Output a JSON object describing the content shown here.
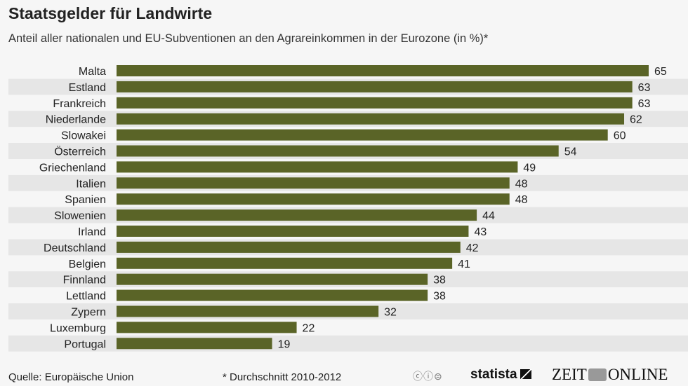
{
  "title": "Staatsgelder für Landwirte",
  "subtitle": "Anteil aller nationalen und EU-Subventionen an den Agrareinkommen in der Eurozone (in %)*",
  "footer": {
    "source": "Quelle: Europäische Union",
    "note": "* Durchschnitt 2010-2012",
    "cc_icons": "cc-by-nd-icons",
    "statista": "statista",
    "zeit_left": "ZEIT",
    "zeit_right": "ONLINE"
  },
  "chart_data": {
    "type": "bar",
    "orientation": "horizontal",
    "title": "Staatsgelder für Landwirte",
    "subtitle": "Anteil aller nationalen und EU-Subventionen an den Agrareinkommen in der Eurozone (in %)*",
    "categories": [
      "Malta",
      "Estland",
      "Frankreich",
      "Niederlande",
      "Slowakei",
      "Österreich",
      "Griechenland",
      "Italien",
      "Spanien",
      "Slowenien",
      "Irland",
      "Deutschland",
      "Belgien",
      "Finnland",
      "Lettland",
      "Zypern",
      "Luxemburg",
      "Portugal"
    ],
    "values": [
      65,
      63,
      63,
      62,
      60,
      54,
      49,
      48,
      48,
      44,
      43,
      42,
      41,
      38,
      38,
      32,
      22,
      19
    ],
    "xlim": [
      0,
      65
    ],
    "grid": false,
    "bar_color": "#5a6427",
    "stripe_color": "#e6e6e6"
  }
}
